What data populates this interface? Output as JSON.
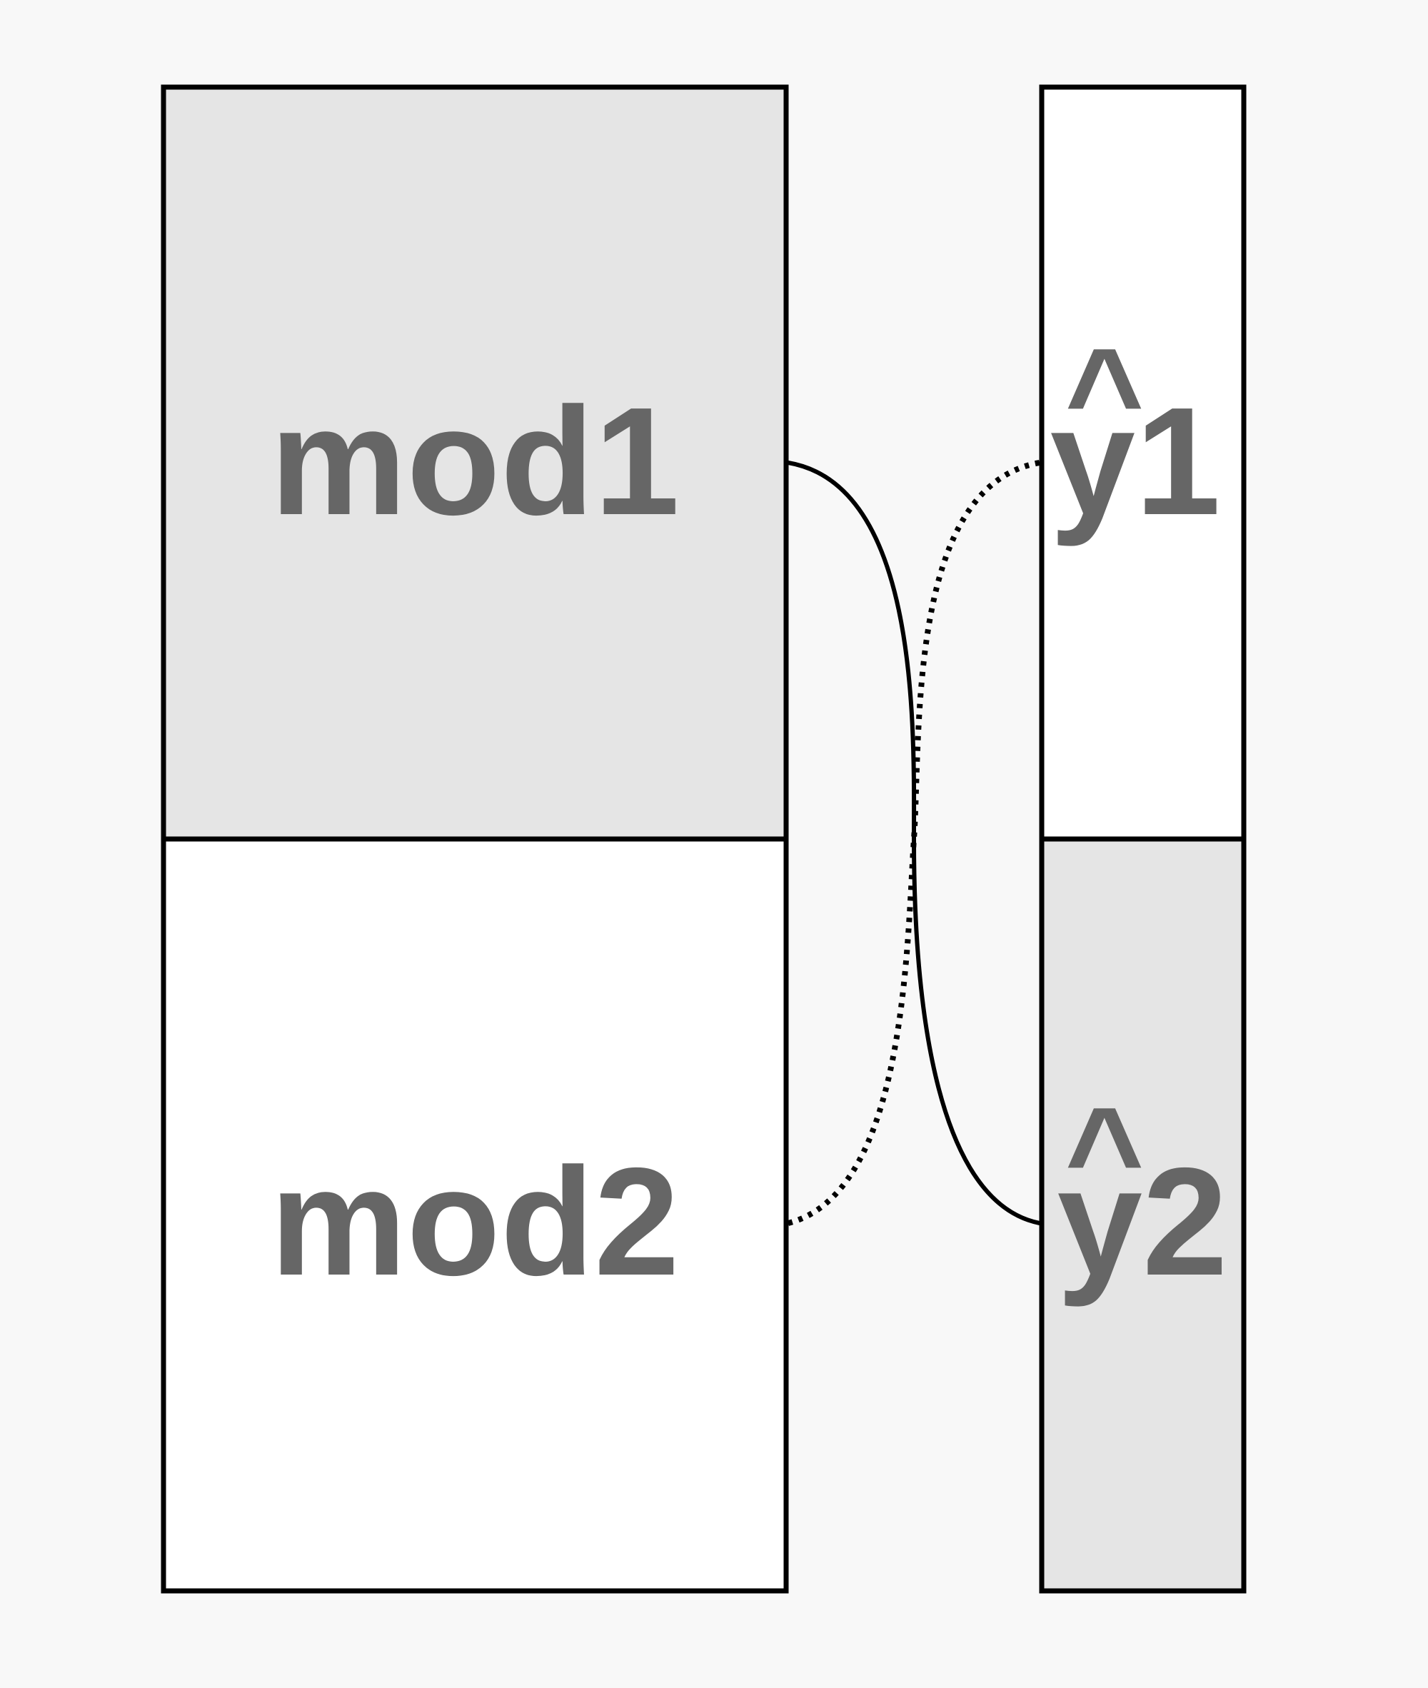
{
  "diagram": {
    "left_column": {
      "top_label": "mod1",
      "bottom_label": "mod2"
    },
    "right_column": {
      "top_label": "y1",
      "bottom_label": "y2",
      "hat_symbol": "^"
    },
    "connectors": [
      {
        "from": "mod1",
        "to": "y2",
        "style": "solid"
      },
      {
        "from": "mod2",
        "to": "y1",
        "style": "dotted"
      }
    ]
  },
  "colors": {
    "background": "#f8f8f8",
    "shaded_fill": "#e5e5e5",
    "plain_fill": "#ffffff",
    "stroke": "#000000",
    "text": "#666666"
  }
}
